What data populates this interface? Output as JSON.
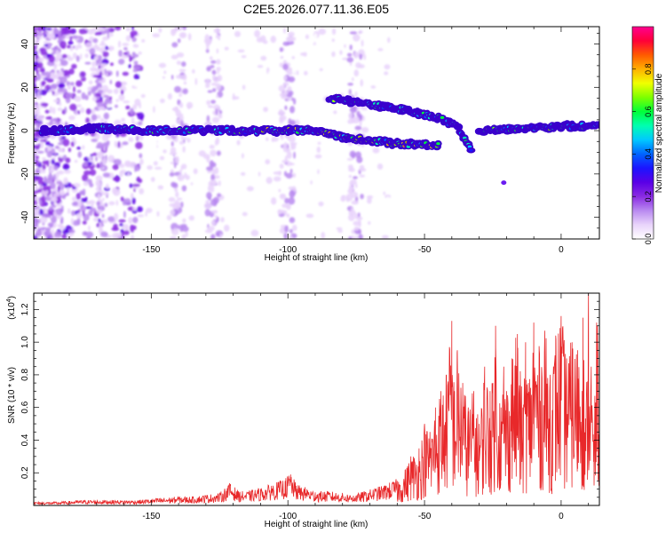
{
  "title": "C2E5.2026.077.11.36.E05",
  "chart_data": [
    {
      "type": "heatmap",
      "title": "C2E5.2026.077.11.36.E05",
      "xlabel": "Height of straight line (km)",
      "ylabel": "Frequency (Hz)",
      "xlim": [
        -193,
        14
      ],
      "ylim": [
        -50,
        48
      ],
      "x_ticks": [
        -150,
        -100,
        -50,
        0
      ],
      "y_ticks": [
        -40,
        -20,
        0,
        20,
        40
      ],
      "colorbar": {
        "label": "Normalized spectral amplitude",
        "range": [
          0,
          1
        ],
        "ticks": [
          0.0,
          0.2,
          0.4,
          0.6,
          0.8
        ],
        "tick_labels": [
          "0.0",
          "0.2",
          "0.4",
          "0.6",
          "0.8"
        ],
        "colormap": [
          "#ffffff",
          "#e9d4fb",
          "#b98af0",
          "#8a2be2",
          "#5a00e6",
          "#1c14ff",
          "#0064ff",
          "#00c8ff",
          "#00ffb0",
          "#00ff3a",
          "#7dff00",
          "#f0ff00",
          "#ffb000",
          "#ff5a00",
          "#ff0038",
          "#ff0090"
        ]
      },
      "features": [
        {
          "name": "main trace",
          "x": [
            -190,
            -170,
            -150,
            -120,
            -100,
            -90,
            -80,
            -60,
            -45
          ],
          "y": [
            0,
            1,
            0,
            0,
            0,
            0,
            -3,
            -6,
            -7
          ]
        },
        {
          "name": "upper branch",
          "x": [
            -85,
            -75,
            -65,
            -55,
            -45,
            -38,
            -33
          ],
          "y": [
            15,
            13,
            11,
            9,
            6,
            2,
            -8
          ]
        },
        {
          "name": "right trace",
          "x": [
            -30,
            -15,
            0,
            10,
            14
          ],
          "y": [
            0,
            1,
            2,
            2,
            2
          ]
        },
        {
          "name": "isolated spot",
          "x": [
            -21
          ],
          "y": [
            -24
          ]
        }
      ],
      "vertical_bands_km": [
        -185,
        -168,
        -140,
        -127,
        -100,
        -75
      ]
    },
    {
      "type": "line",
      "xlabel": "Height of straight line (km)",
      "ylabel": "SNR (10 * v/v)",
      "y_scale_label": "(x10",
      "y_scale_exponent": "4",
      "xlim": [
        -193,
        14
      ],
      "ylim": [
        0,
        1.3
      ],
      "x_ticks": [
        -150,
        -100,
        -50,
        0
      ],
      "y_ticks": [
        0.2,
        0.4,
        0.6,
        0.8,
        1.0,
        1.2
      ],
      "y_tick_labels": [
        "0.2",
        "0.4",
        "0.6",
        "0.8",
        "1.0",
        "1.2"
      ],
      "series": [
        {
          "name": "SNR",
          "color": "#e8282a",
          "x": [
            -193,
            -185,
            -175,
            -165,
            -155,
            -148,
            -140,
            -135,
            -130,
            -125,
            -121,
            -118,
            -115,
            -110,
            -106,
            -101,
            -99,
            -97,
            -93,
            -90,
            -85,
            -80,
            -76,
            -72,
            -68,
            -64,
            -60,
            -57,
            -55,
            -52,
            -50,
            -48,
            -46,
            -44,
            -42,
            -40,
            -39,
            -38,
            -36,
            -34,
            -32,
            -30,
            -28,
            -26,
            -25,
            -24,
            -22,
            -21,
            -20,
            -18,
            -16,
            -14,
            -13,
            -12,
            -10,
            -8,
            -6,
            -4,
            -2,
            0,
            2,
            4,
            6,
            8,
            9,
            10,
            11,
            12,
            13,
            14
          ],
          "y": [
            0.02,
            0.02,
            0.03,
            0.03,
            0.03,
            0.04,
            0.05,
            0.05,
            0.06,
            0.07,
            0.13,
            0.08,
            0.08,
            0.1,
            0.12,
            0.15,
            0.19,
            0.12,
            0.1,
            0.08,
            0.08,
            0.07,
            0.06,
            0.08,
            0.1,
            0.12,
            0.15,
            0.22,
            0.3,
            0.35,
            0.5,
            0.45,
            0.6,
            0.7,
            0.8,
            1.13,
            0.7,
            0.95,
            0.75,
            0.6,
            0.7,
            0.5,
            0.85,
            0.7,
            0.75,
            1.1,
            0.6,
            0.85,
            0.7,
            0.9,
            1.05,
            0.6,
            1.0,
            0.75,
            1.12,
            0.95,
            1.07,
            0.8,
            1.04,
            1.16,
            0.9,
            1.0,
            0.95,
            1.15,
            0.5,
            1.3,
            0.85,
            0.4,
            1.12,
            1.05
          ]
        }
      ]
    }
  ]
}
